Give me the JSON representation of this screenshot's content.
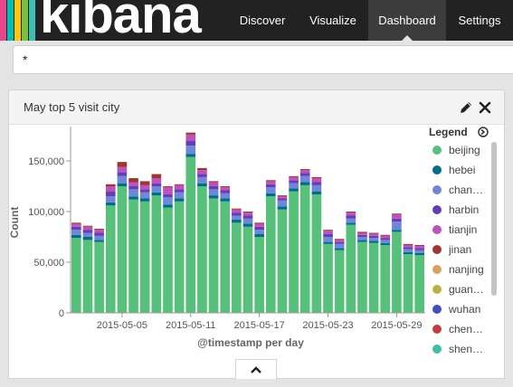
{
  "app": {
    "logo_text": "kibana",
    "stripe_colors": [
      "#e8478b",
      "#00bfb3",
      "#fec514",
      "#7ac142",
      "#3ebeb0"
    ],
    "nav": [
      {
        "label": "Discover",
        "active": false
      },
      {
        "label": "Visualize",
        "active": false
      },
      {
        "label": "Dashboard",
        "active": true
      },
      {
        "label": "Settings",
        "active": false
      }
    ]
  },
  "search": {
    "value": "*"
  },
  "panel": {
    "title": "May top 5 visit city",
    "edit_icon": "pencil-icon",
    "close_icon": "close-icon"
  },
  "legend": {
    "title": "Legend",
    "items": [
      {
        "label": "beijing",
        "color": "#57c17b"
      },
      {
        "label": "hebei",
        "color": "#006e8a"
      },
      {
        "label": "chan…",
        "color": "#6f87d8"
      },
      {
        "label": "harbin",
        "color": "#663db8"
      },
      {
        "label": "tianjin",
        "color": "#bc52bc"
      },
      {
        "label": "jinan",
        "color": "#9e3533"
      },
      {
        "label": "nanjing",
        "color": "#daa05d"
      },
      {
        "label": "guan…",
        "color": "#bfaf40"
      },
      {
        "label": "wuhan",
        "color": "#4050bf"
      },
      {
        "label": "chen…",
        "color": "#bf4040"
      },
      {
        "label": "shen…",
        "color": "#40bfa6"
      }
    ]
  },
  "chart_data": {
    "type": "bar",
    "stacked": true,
    "xlabel": "@timestamp per day",
    "ylabel": "Count",
    "ylim": [
      0,
      175000
    ],
    "yticks": [
      0,
      50000,
      100000,
      150000
    ],
    "ytick_labels": [
      "0",
      "50,000",
      "100,000",
      "150,000"
    ],
    "xtick_labels": [
      {
        "label": "2015-05-05",
        "index": 4
      },
      {
        "label": "2015-05-11",
        "index": 10
      },
      {
        "label": "2015-05-17",
        "index": 16
      },
      {
        "label": "2015-05-23",
        "index": 22
      },
      {
        "label": "2015-05-29",
        "index": 28
      }
    ],
    "categories": [
      "2015-05-01",
      "2015-05-02",
      "2015-05-03",
      "2015-05-04",
      "2015-05-05",
      "2015-05-06",
      "2015-05-07",
      "2015-05-08",
      "2015-05-09",
      "2015-05-10",
      "2015-05-11",
      "2015-05-12",
      "2015-05-13",
      "2015-05-14",
      "2015-05-15",
      "2015-05-16",
      "2015-05-17",
      "2015-05-18",
      "2015-05-19",
      "2015-05-20",
      "2015-05-21",
      "2015-05-22",
      "2015-05-23",
      "2015-05-24",
      "2015-05-25",
      "2015-05-26",
      "2015-05-27",
      "2015-05-28",
      "2015-05-29",
      "2015-05-30",
      "2015-05-31"
    ],
    "series": [
      {
        "name": "beijing",
        "color": "#57c17b",
        "values": [
          74000,
          72000,
          70000,
          106000,
          125000,
          112000,
          110000,
          116000,
          104000,
          110000,
          154000,
          125000,
          113000,
          110000,
          89000,
          85000,
          75000,
          115000,
          102000,
          120000,
          126000,
          117000,
          68000,
          62000,
          87000,
          70000,
          69000,
          67000,
          80000,
          58000,
          57000
        ]
      },
      {
        "name": "hebei",
        "color": "#006e8a",
        "values": [
          3000,
          3000,
          2000,
          3000,
          3000,
          3000,
          3000,
          3000,
          3000,
          3000,
          3000,
          3000,
          3000,
          3000,
          3000,
          3000,
          3000,
          3000,
          3000,
          3000,
          3000,
          3000,
          2000,
          2000,
          2000,
          2000,
          2000,
          2000,
          2000,
          2000,
          2000
        ]
      },
      {
        "name": "chan…",
        "color": "#6f87d8",
        "values": [
          5000,
          4000,
          4000,
          6000,
          7000,
          7000,
          6000,
          6000,
          7000,
          6000,
          8000,
          6000,
          6000,
          5000,
          4000,
          5000,
          4000,
          6000,
          6000,
          5000,
          6000,
          6000,
          5000,
          4000,
          4000,
          3000,
          3000,
          3000,
          8000,
          3000,
          3000
        ]
      },
      {
        "name": "harbin",
        "color": "#663db8",
        "values": [
          3000,
          3000,
          3000,
          5000,
          4000,
          3000,
          3000,
          3000,
          3000,
          3000,
          5000,
          3000,
          3000,
          3000,
          3000,
          3000,
          3000,
          3000,
          2000,
          3000,
          3000,
          3000,
          3000,
          2000,
          3000,
          2000,
          2000,
          2000,
          3000,
          2000,
          2000
        ]
      },
      {
        "name": "tianjin",
        "color": "#bc52bc",
        "values": [
          3000,
          3000,
          3000,
          5000,
          5000,
          4000,
          4000,
          5000,
          7000,
          4000,
          6000,
          4000,
          4000,
          3000,
          3000,
          3000,
          3000,
          3000,
          2000,
          3000,
          3000,
          4000,
          3000,
          2000,
          3000,
          2000,
          2000,
          2000,
          4000,
          2000,
          2000
        ]
      },
      {
        "name": "jinan",
        "color": "#9e3533",
        "values": [
          1000,
          1000,
          1000,
          2000,
          5000,
          4000,
          4000,
          4000,
          1000,
          1000,
          2000,
          2000,
          1000,
          1000,
          1000,
          1000,
          1000,
          1000,
          1000,
          1000,
          1000,
          1000,
          1000,
          1000,
          1000,
          1000,
          1000,
          1000,
          1000,
          1000,
          1000
        ]
      }
    ]
  }
}
